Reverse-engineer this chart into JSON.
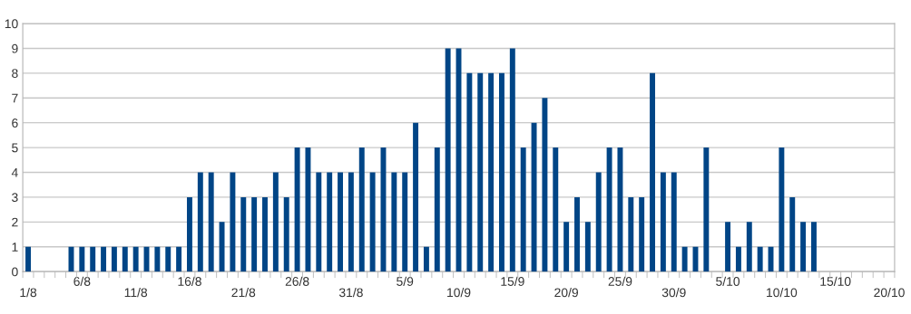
{
  "chart_data": {
    "type": "bar",
    "categories": [
      "1/8",
      null,
      null,
      null,
      null,
      "6/8",
      null,
      null,
      null,
      null,
      "11/8",
      null,
      null,
      null,
      null,
      "16/8",
      null,
      null,
      null,
      null,
      "21/8",
      null,
      null,
      null,
      null,
      "26/8",
      null,
      null,
      null,
      null,
      "31/8",
      null,
      null,
      null,
      null,
      "5/9",
      null,
      null,
      null,
      null,
      "10/9",
      null,
      null,
      null,
      null,
      "15/9",
      null,
      null,
      null,
      null,
      "20/9",
      null,
      null,
      null,
      null,
      "25/9",
      null,
      null,
      null,
      null,
      "30/9",
      null,
      null,
      null,
      null,
      "5/10",
      null,
      null,
      null,
      null,
      "10/10",
      null,
      null,
      null,
      null,
      "15/10",
      null,
      null,
      null,
      null,
      "20/10"
    ],
    "values": [
      1,
      0,
      0,
      0,
      1,
      1,
      1,
      1,
      1,
      1,
      1,
      1,
      1,
      1,
      1,
      3,
      4,
      4,
      2,
      4,
      3,
      3,
      3,
      4,
      3,
      5,
      5,
      4,
      4,
      4,
      4,
      5,
      4,
      5,
      4,
      4,
      6,
      1,
      5,
      9,
      9,
      8,
      8,
      8,
      8,
      9,
      5,
      6,
      7,
      5,
      2,
      3,
      2,
      4,
      5,
      5,
      3,
      3,
      8,
      4,
      4,
      1,
      1,
      5,
      0,
      2,
      1,
      2,
      1,
      1,
      5,
      3,
      2,
      2,
      0,
      0,
      0,
      0,
      0,
      0,
      0
    ],
    "color": "#004586",
    "ylim": [
      0,
      10
    ],
    "yticks": [
      0,
      1,
      2,
      3,
      4,
      5,
      6,
      7,
      8,
      9,
      10
    ],
    "grid": "y"
  }
}
